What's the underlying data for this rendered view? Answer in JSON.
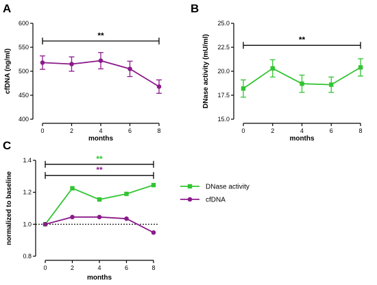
{
  "panels": {
    "a": "A",
    "b": "B",
    "c": "C"
  },
  "chart_data": [
    {
      "type": "line",
      "panel": "A",
      "xlabel": "months",
      "ylabel": "cfDNA (ng/ml)",
      "x": [
        0,
        2,
        4,
        6,
        8
      ],
      "xticks": [
        "0",
        "2",
        "4",
        "6",
        "8"
      ],
      "ylim": [
        400,
        600
      ],
      "yticks": [
        "400",
        "450",
        "500",
        "550",
        "600"
      ],
      "series": [
        {
          "values": [
            518,
            515,
            522,
            505,
            468
          ],
          "errors": [
            14,
            15,
            17,
            16,
            14
          ],
          "color": "#8b1a8b"
        }
      ],
      "significance": {
        "label": "**",
        "from": 0,
        "to": 8,
        "y": 563,
        "color": "#000000"
      }
    },
    {
      "type": "line",
      "panel": "B",
      "xlabel": "months",
      "ylabel": "DNase activity (mU/ml)",
      "x": [
        0,
        2,
        4,
        6,
        8
      ],
      "xticks": [
        "0",
        "2",
        "4",
        "6",
        "8"
      ],
      "ylim": [
        15.0,
        25.0
      ],
      "yticks": [
        "15.0",
        "17.5",
        "20.0",
        "22.5",
        "25.0"
      ],
      "series": [
        {
          "values": [
            18.2,
            20.3,
            18.7,
            18.6,
            20.4
          ],
          "errors": [
            0.9,
            0.9,
            0.9,
            0.8,
            0.9
          ],
          "color": "#33c433"
        }
      ],
      "significance": {
        "label": "**",
        "from": 0,
        "to": 8,
        "y": 22.7,
        "color": "#000000"
      }
    },
    {
      "type": "line",
      "panel": "C",
      "xlabel": "months",
      "ylabel": "normalized to baseline",
      "x": [
        0,
        2,
        4,
        6,
        8
      ],
      "xticks": [
        "0",
        "2",
        "4",
        "6",
        "8"
      ],
      "ylim": [
        0.8,
        1.4
      ],
      "yticks": [
        "0.8",
        "1.0",
        "1.2",
        "1.4"
      ],
      "baseline": 1.0,
      "series": [
        {
          "name": "DNase activity",
          "values": [
            1.0,
            1.225,
            1.155,
            1.19,
            1.245
          ],
          "color": "#33c433",
          "marker": "square"
        },
        {
          "name": "cfDNA",
          "values": [
            1.0,
            1.045,
            1.045,
            1.035,
            0.948
          ],
          "color": "#8b1a8b",
          "marker": "circle"
        }
      ],
      "significance": [
        {
          "label": "**",
          "from": 0,
          "to": 8,
          "y": 1.375,
          "color": "#33c433"
        },
        {
          "label": "**",
          "from": 0,
          "to": 8,
          "y": 1.305,
          "color": "#8b1a8b"
        }
      ],
      "legend": "right"
    }
  ]
}
